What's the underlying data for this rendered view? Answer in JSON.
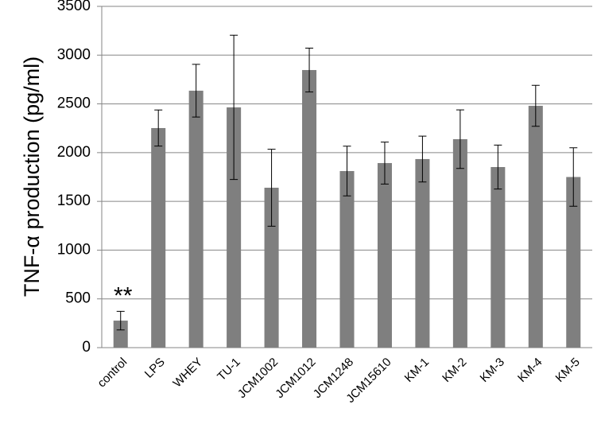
{
  "chart_data": {
    "type": "bar",
    "ylabel": "TNF-α production (pg/ml)",
    "annotation": "**",
    "categories": [
      "control",
      "LPS",
      "WHEY",
      "TU-1",
      "JCM1002",
      "JCM1012",
      "JCM1248",
      "JCM15610",
      "KM-1",
      "KM-2",
      "KM-3",
      "KM-4",
      "KM-5"
    ],
    "values": [
      277,
      2252,
      2635,
      2464,
      1640,
      2847,
      1811,
      1893,
      1934,
      2138,
      1852,
      2480,
      1750
    ],
    "errors": [
      95,
      185,
      270,
      740,
      395,
      225,
      255,
      215,
      235,
      300,
      225,
      210,
      300
    ],
    "color": "#7f7f7f",
    "ylim": [
      0,
      3500
    ],
    "yticks": [
      0,
      500,
      1000,
      1500,
      2000,
      2500,
      3000,
      3500
    ],
    "grid": true
  }
}
